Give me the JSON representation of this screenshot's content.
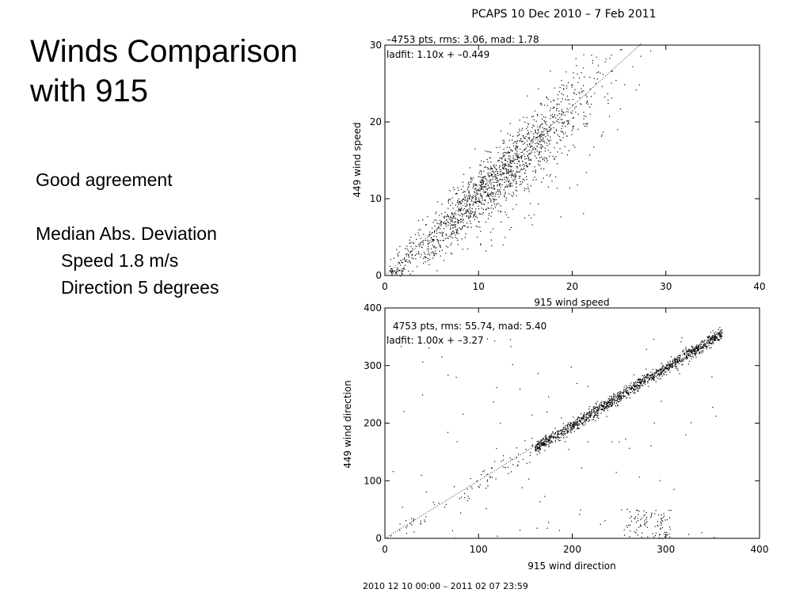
{
  "slide": {
    "title_lines": [
      "Winds Comparison",
      "with 915"
    ],
    "bullets": {
      "b1": "Good agreement",
      "b2": "Median Abs. Deviation",
      "b2a": "Speed 1.8 m/s",
      "b2b": "Direction 5 degrees"
    }
  },
  "figure": {
    "header": "PCAPS 10 Dec 2010 –  7 Feb 2011",
    "footer": "2010 12 10 00:00 – 2011 02 07 23:59"
  },
  "chart_data": [
    {
      "type": "scatter",
      "xlabel": "915 wind speed",
      "ylabel": "449 wind speed",
      "xlim": [
        0,
        40
      ],
      "ylim": [
        0,
        30
      ],
      "xticks": [
        "0",
        "10",
        "20",
        "30",
        "40"
      ],
      "yticks": [
        "0",
        "10",
        "20",
        "30"
      ],
      "annotation_stats": "–4753 pts, rms: 3.06, mad: 1.78",
      "annotation_fit": "ladfit: 1.10x + –0.449",
      "n_points": 4753,
      "rms": 3.06,
      "mad": 1.78,
      "fit_slope": 1.1,
      "fit_intercept": -0.449,
      "grid": false,
      "reference_line": "dotted 1:1 diagonal"
    },
    {
      "type": "scatter",
      "xlabel": "915 wind direction",
      "ylabel": "449 wind direction",
      "xlim": [
        0,
        400
      ],
      "ylim": [
        0,
        400
      ],
      "xticks": [
        "0",
        "100",
        "200",
        "300",
        "400"
      ],
      "yticks": [
        "0",
        "100",
        "200",
        "300",
        "400"
      ],
      "annotation_stats": "4753 pts, rms: 55.74, mad: 5.40",
      "annotation_fit": "ladfit: 1.00x + –3.27",
      "n_points": 4753,
      "rms": 55.74,
      "mad": 5.4,
      "fit_slope": 1.0,
      "fit_intercept": -3.27,
      "grid": false,
      "reference_line": "dotted 1:1 diagonal"
    }
  ]
}
